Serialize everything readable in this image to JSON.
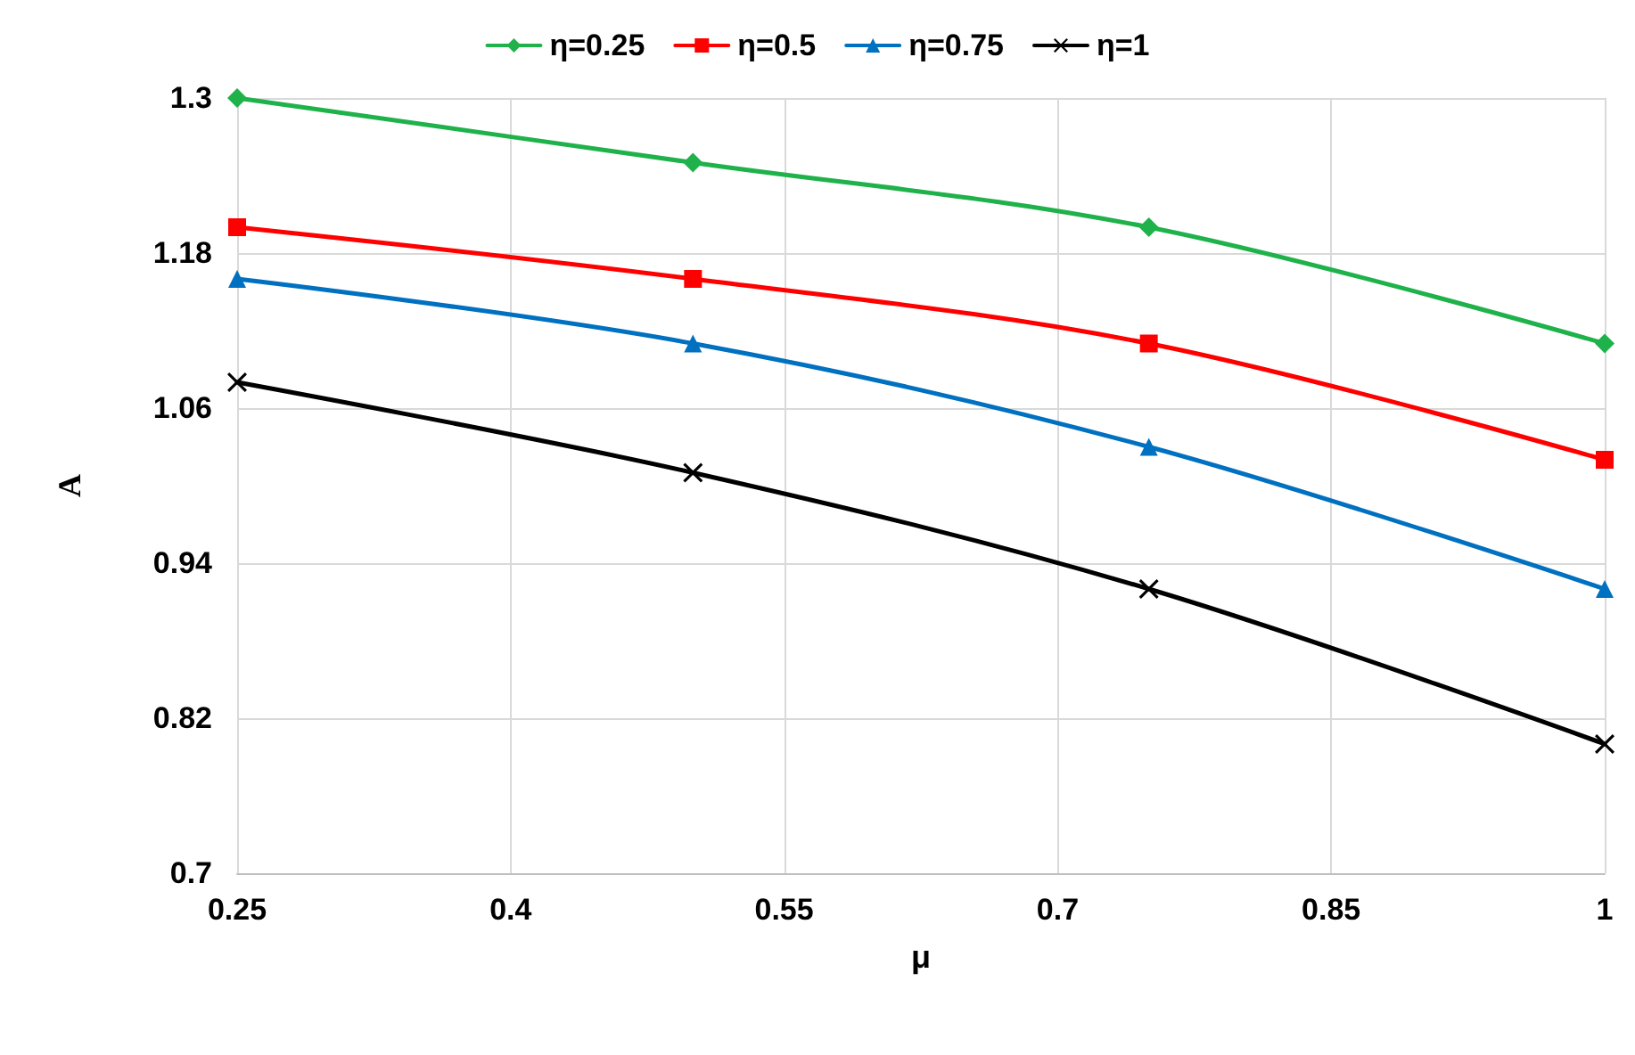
{
  "chart_data": {
    "type": "line",
    "xlabel": "μ",
    "ylabel": "A",
    "x": [
      0.25,
      0.5,
      0.75,
      1
    ],
    "series": [
      {
        "name": "η=0.25",
        "color": "#1fb24a",
        "marker": "diamond",
        "values": [
          1.3,
          1.25,
          1.2,
          1.11
        ]
      },
      {
        "name": "η=0.5",
        "color": "#ff0000",
        "marker": "square",
        "values": [
          1.2,
          1.16,
          1.11,
          1.02
        ]
      },
      {
        "name": "η=0.75",
        "color": "#0070c0",
        "marker": "triangle",
        "values": [
          1.16,
          1.11,
          1.03,
          0.92
        ]
      },
      {
        "name": "η=1",
        "color": "#000000",
        "marker": "cross",
        "values": [
          1.08,
          1.01,
          0.92,
          0.8
        ]
      }
    ],
    "xlim": [
      0.25,
      1
    ],
    "xticks": [
      0.25,
      0.4,
      0.55,
      0.7,
      0.85,
      1
    ],
    "ylim": [
      0.7,
      1.3
    ],
    "yticks": [
      0.7,
      0.82,
      0.94,
      1.06,
      1.18,
      1.3
    ],
    "grid": true,
    "legend": "top"
  }
}
